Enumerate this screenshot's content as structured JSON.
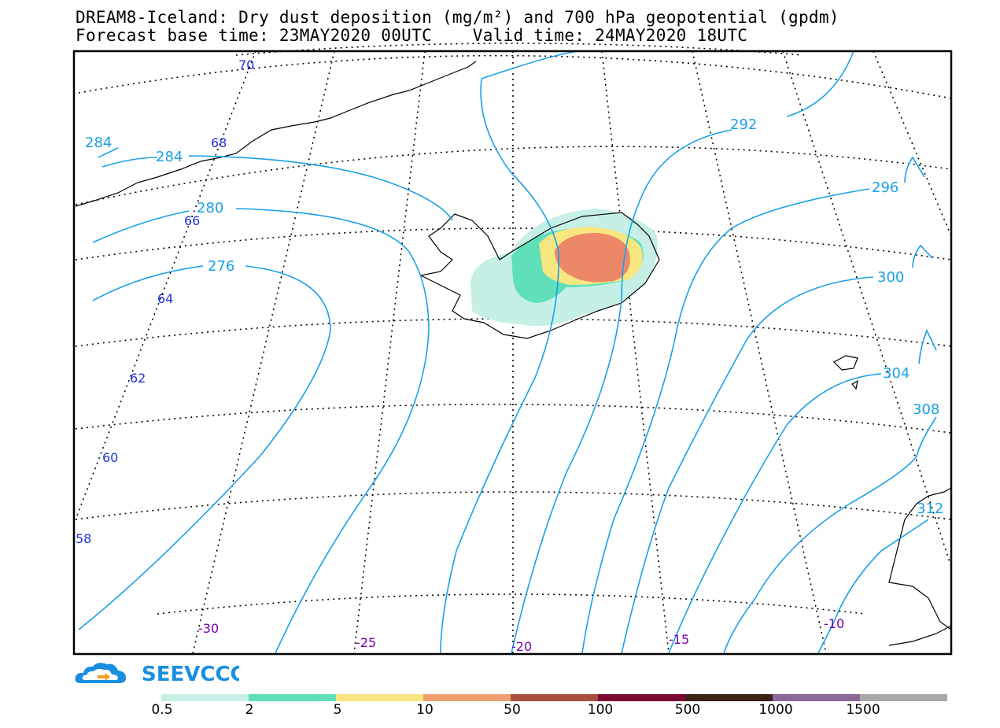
{
  "title": {
    "line1": "DREAM8-Iceland: Dry dust deposition (mg/m²) and 700 hPa geopotential (gpdm)",
    "line2": "Forecast base time: 23MAY2020 00UTC    Valid time: 24MAY2020 18UTC"
  },
  "map": {
    "region": "Iceland and North Atlantic",
    "latitude_labels": [
      "70",
      "68",
      "66",
      "64",
      "62",
      "60",
      "58"
    ],
    "longitude_labels": [
      "-30",
      "-25",
      "-20",
      "-15",
      "-10"
    ],
    "geopotential_contours_gpdm": [
      "284",
      "284",
      "280",
      "276",
      "292",
      "296",
      "300",
      "304",
      "308",
      "312"
    ],
    "colors": {
      "contour": "#1aa0e8",
      "coastline": "#000000",
      "graticule": "#000000",
      "lat_label": "#2233dd",
      "lon_label": "#7a00b0"
    }
  },
  "dust_field": {
    "description": "Dry dust deposition over northeast Iceland, peak values 10-50 mg/m² in the northeast highlands",
    "levels_present": [
      "0.5",
      "2",
      "5",
      "10"
    ]
  },
  "logo": {
    "text": "SEEVCCC",
    "icon": "cloud-arrow-icon",
    "color": "#1a8fe0"
  },
  "legend": {
    "labels": [
      "0.5",
      "2",
      "5",
      "10",
      "50",
      "100",
      "500",
      "1000",
      "1500"
    ],
    "colors": [
      "#c6f0e6",
      "#5fe0b8",
      "#f8e680",
      "#f0a070",
      "#a85040",
      "#7a0830",
      "#3a2418",
      "#8a6898",
      "#a8a8a8"
    ]
  }
}
